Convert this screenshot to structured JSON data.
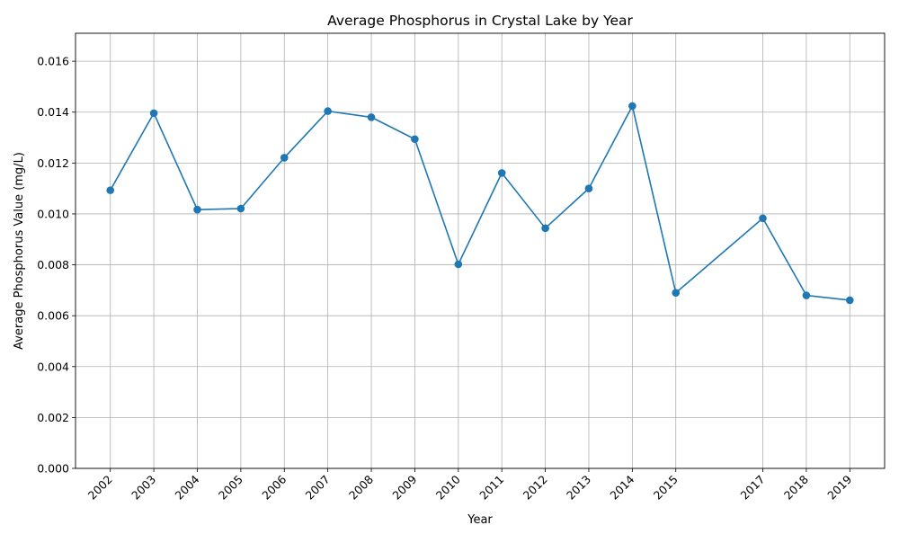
{
  "chart_data": {
    "type": "line",
    "title": "Average Phosphorus in Crystal Lake by Year",
    "xlabel": "Year",
    "ylabel": "Average Phosphorus Value (mg/L)",
    "x": [
      2002,
      2003,
      2004,
      2005,
      2006,
      2007,
      2008,
      2009,
      2010,
      2011,
      2012,
      2013,
      2014,
      2015,
      2017,
      2018,
      2019
    ],
    "x_tick_labels": [
      "2002",
      "2003",
      "2004",
      "2005",
      "2006",
      "2007",
      "2008",
      "2009",
      "2010",
      "2011",
      "2012",
      "2013",
      "2014",
      "2015",
      "2017",
      "2018",
      "2019"
    ],
    "y": [
      0.01093,
      0.01396,
      0.01017,
      0.01021,
      0.01221,
      0.01404,
      0.0138,
      0.01294,
      0.00802,
      0.01161,
      0.00944,
      0.011,
      0.01424,
      0.0069,
      0.00983,
      0.0068,
      0.00661
    ],
    "xlim": [
      2001.2,
      2019.8
    ],
    "ylim": [
      0.0,
      0.0171
    ],
    "y_ticks": [
      0.0,
      0.002,
      0.004,
      0.006,
      0.008,
      0.01,
      0.012,
      0.014,
      0.016
    ],
    "y_tick_labels": [
      "0.000",
      "0.002",
      "0.004",
      "0.006",
      "0.008",
      "0.010",
      "0.012",
      "0.014",
      "0.016"
    ],
    "grid": true,
    "legend": "none",
    "x_tick_rotation_deg": 45,
    "colors": {
      "line": "#1f77b4",
      "marker": "#1f77b4",
      "grid": "#b0b0b0",
      "axes": "#000000"
    }
  }
}
